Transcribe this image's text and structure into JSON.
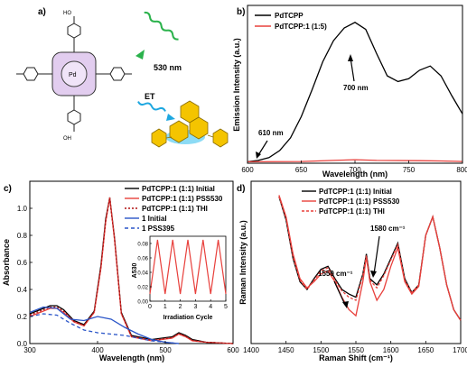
{
  "panels": {
    "a": {
      "label": "a)",
      "wavelength_label": "530 nm",
      "et_label": "ET",
      "colors": {
        "wavy_green": "#2bb24c",
        "wavy_blue": "#1ea7e0",
        "acceptor_yellow": "#f4c400",
        "porphyrin": "#d8bfe8"
      }
    },
    "b": {
      "label": "b)",
      "chart_data": {
        "type": "line",
        "xlabel": "Wavelength (nm)",
        "ylabel": "Emission Intensity (a.u.)",
        "xlim": [
          600,
          800
        ],
        "xticks": [
          600,
          650,
          700,
          750,
          800
        ],
        "legend_placement": "top-left",
        "annotations": [
          {
            "text": "700 nm",
            "x": 700
          },
          {
            "text": "610 nm",
            "x": 610
          }
        ],
        "series": [
          {
            "name": "PdTCPP",
            "color": "#000000",
            "x": [
              600,
              610,
              620,
              630,
              640,
              650,
              660,
              670,
              680,
              690,
              700,
              710,
              720,
              730,
              740,
              750,
              760,
              770,
              780,
              790,
              800
            ],
            "y": [
              0.01,
              0.02,
              0.04,
              0.09,
              0.18,
              0.33,
              0.52,
              0.72,
              0.87,
              0.96,
              1.0,
              0.95,
              0.78,
              0.62,
              0.58,
              0.6,
              0.66,
              0.69,
              0.62,
              0.48,
              0.35
            ]
          },
          {
            "name": "PdTCPP:1 (1:5)",
            "color": "#e8403c",
            "x": [
              600,
              650,
              680,
              700,
              720,
              760,
              780,
              800
            ],
            "y": [
              0.01,
              0.012,
              0.02,
              0.025,
              0.02,
              0.018,
              0.016,
              0.012
            ]
          }
        ]
      }
    },
    "c": {
      "label": "c)",
      "chart_data": {
        "type": "line",
        "xlabel": "Wavelength (nm)",
        "ylabel": "Absorbance",
        "xlim": [
          300,
          600
        ],
        "ylim": [
          0.0,
          1.2
        ],
        "xticks": [
          300,
          400,
          500,
          600
        ],
        "yticks": [
          0.0,
          0.2,
          0.4,
          0.6,
          0.8,
          1.0
        ],
        "legend_placement": "top-right",
        "series": [
          {
            "name": "PdTCPP:1 (1:1) Initial",
            "color": "#000000",
            "dash": "",
            "x": [
              300,
              315,
              330,
              340,
              350,
              365,
              380,
              395,
              405,
              412,
              418,
              425,
              435,
              450,
              480,
              510,
              520,
              530,
              540,
              560,
              600
            ],
            "y": [
              0.22,
              0.25,
              0.28,
              0.28,
              0.25,
              0.17,
              0.14,
              0.24,
              0.58,
              0.92,
              1.08,
              0.78,
              0.23,
              0.06,
              0.03,
              0.05,
              0.08,
              0.06,
              0.03,
              0.01,
              0.0
            ]
          },
          {
            "name": "PdTCPP:1 (1:1) PSS530",
            "color": "#e8403c",
            "dash": "",
            "x": [
              300,
              315,
              330,
              340,
              350,
              365,
              380,
              395,
              405,
              412,
              418,
              425,
              435,
              450,
              480,
              510,
              520,
              530,
              540,
              560,
              600
            ],
            "y": [
              0.2,
              0.23,
              0.26,
              0.26,
              0.23,
              0.16,
              0.13,
              0.23,
              0.56,
              0.9,
              1.08,
              0.77,
              0.22,
              0.05,
              0.02,
              0.04,
              0.07,
              0.05,
              0.02,
              0.01,
              0.0
            ]
          },
          {
            "name": "PdTCPP:1 (1:1) THI",
            "color": "#b01010",
            "dash": "2,2",
            "x": [
              300,
              315,
              330,
              340,
              350,
              365,
              380,
              395,
              405,
              412,
              418,
              425,
              435,
              450,
              480,
              510,
              520,
              530,
              540,
              560,
              600
            ],
            "y": [
              0.21,
              0.24,
              0.27,
              0.27,
              0.24,
              0.165,
              0.135,
              0.235,
              0.57,
              0.91,
              1.07,
              0.77,
              0.225,
              0.055,
              0.025,
              0.045,
              0.075,
              0.055,
              0.025,
              0.01,
              0.0
            ]
          },
          {
            "name": "1 Initial",
            "color": "#2a55c8",
            "dash": "",
            "x": [
              300,
              320,
              340,
              360,
              380,
              400,
              420,
              440,
              460,
              480,
              500,
              520
            ],
            "y": [
              0.23,
              0.27,
              0.26,
              0.18,
              0.17,
              0.2,
              0.18,
              0.12,
              0.07,
              0.03,
              0.01,
              0.0
            ]
          },
          {
            "name": "1 PSS395",
            "color": "#2a55c8",
            "dash": "4,3",
            "x": [
              300,
              320,
              340,
              360,
              380,
              400,
              420,
              440,
              460,
              480,
              500,
              520
            ],
            "y": [
              0.2,
              0.22,
              0.21,
              0.15,
              0.1,
              0.08,
              0.07,
              0.06,
              0.04,
              0.02,
              0.01,
              0.0
            ]
          }
        ],
        "inset": {
          "type": "line",
          "xlabel": "Irradiation Cycle",
          "ylabel": "A530",
          "xlim": [
            0,
            5
          ],
          "ylim": [
            0.0,
            0.09
          ],
          "xticks": [
            0,
            1,
            2,
            3,
            4,
            5
          ],
          "yticks": [
            0.0,
            0.02,
            0.04,
            0.06,
            0.08
          ],
          "color": "#e8403c",
          "x": [
            0,
            0.5,
            1,
            1.5,
            2,
            2.5,
            3,
            3.5,
            4,
            4.5,
            5
          ],
          "y": [
            0.01,
            0.085,
            0.01,
            0.085,
            0.01,
            0.085,
            0.01,
            0.085,
            0.01,
            0.085,
            0.01
          ]
        }
      }
    },
    "d": {
      "label": "d)",
      "chart_data": {
        "type": "line",
        "xlabel": "Raman Shift (cm⁻¹)",
        "ylabel": "Raman Intensity (a.u.)",
        "xlim": [
          1400,
          1700
        ],
        "xticks": [
          1400,
          1450,
          1500,
          1550,
          1600,
          1650,
          1700
        ],
        "legend_placement": "top-left",
        "annotations": [
          {
            "text": "1550 cm⁻¹",
            "x": 1550
          },
          {
            "text": "1580 cm⁻¹",
            "x": 1580
          }
        ],
        "series": [
          {
            "name": "PdTCPP:1 (1:1) Initial",
            "color": "#000000",
            "dash": "",
            "x": [
              1440,
              1450,
              1460,
              1470,
              1480,
              1490,
              1500,
              1510,
              1520,
              1530,
              1540,
              1550,
              1560,
              1565,
              1570,
              1580,
              1590,
              1600,
              1610,
              1620,
              1630,
              1640,
              1650,
              1660,
              1670,
              1680,
              1690,
              1700
            ],
            "y": [
              0.95,
              0.8,
              0.55,
              0.4,
              0.35,
              0.42,
              0.48,
              0.5,
              0.42,
              0.35,
              0.32,
              0.3,
              0.45,
              0.58,
              0.42,
              0.38,
              0.45,
              0.55,
              0.65,
              0.42,
              0.33,
              0.38,
              0.7,
              0.82,
              0.62,
              0.38,
              0.22,
              0.15
            ]
          },
          {
            "name": "PdTCPP:1 (1:1) PSS530",
            "color": "#e8403c",
            "dash": "",
            "x": [
              1440,
              1450,
              1460,
              1470,
              1480,
              1490,
              1500,
              1510,
              1520,
              1530,
              1540,
              1550,
              1560,
              1565,
              1570,
              1580,
              1590,
              1600,
              1610,
              1620,
              1630,
              1640,
              1650,
              1660,
              1670,
              1680,
              1690,
              1700
            ],
            "y": [
              0.96,
              0.82,
              0.58,
              0.42,
              0.36,
              0.4,
              0.45,
              0.47,
              0.4,
              0.3,
              0.22,
              0.18,
              0.4,
              0.56,
              0.4,
              0.28,
              0.35,
              0.5,
              0.62,
              0.4,
              0.32,
              0.37,
              0.7,
              0.82,
              0.62,
              0.38,
              0.22,
              0.15
            ]
          },
          {
            "name": "PdTCPP:1 (1:1) THI",
            "color": "#e8403c",
            "dash": "3,2",
            "x": [
              1440,
              1450,
              1460,
              1470,
              1480,
              1490,
              1500,
              1510,
              1520,
              1530,
              1540,
              1550,
              1560,
              1565,
              1570,
              1580,
              1590,
              1600,
              1610,
              1620,
              1630,
              1640,
              1650,
              1660,
              1670,
              1680,
              1690,
              1700
            ],
            "y": [
              0.95,
              0.81,
              0.56,
              0.41,
              0.35,
              0.41,
              0.47,
              0.49,
              0.41,
              0.34,
              0.3,
              0.28,
              0.44,
              0.57,
              0.41,
              0.36,
              0.44,
              0.54,
              0.64,
              0.41,
              0.33,
              0.38,
              0.7,
              0.82,
              0.62,
              0.38,
              0.22,
              0.15
            ]
          }
        ]
      }
    }
  }
}
